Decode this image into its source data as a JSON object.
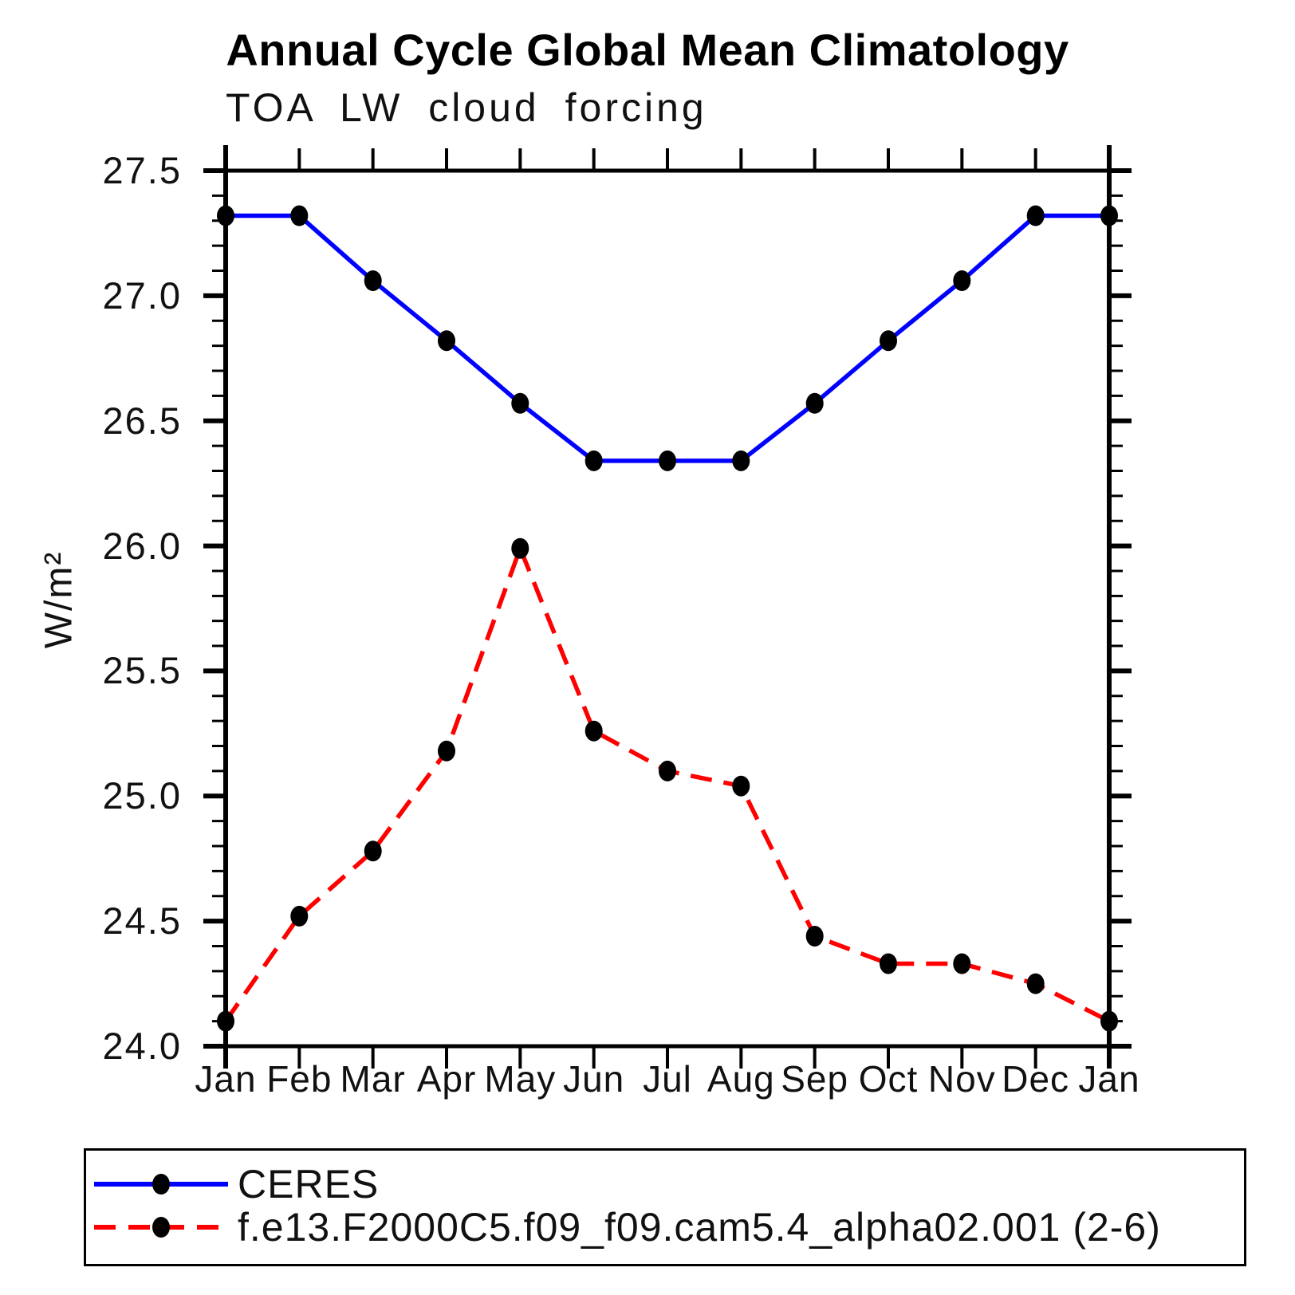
{
  "chart_data": {
    "type": "line",
    "title": "Annual Cycle Global Mean Climatology",
    "subtitle": "TOA LW cloud forcing",
    "ylabel": "W/m²",
    "xlabel": "",
    "categories": [
      "Jan",
      "Feb",
      "Mar",
      "Apr",
      "May",
      "Jun",
      "Jul",
      "Aug",
      "Sep",
      "Oct",
      "Nov",
      "Dec",
      "Jan"
    ],
    "ylim": [
      24.0,
      27.5
    ],
    "y_tick_labels": [
      "27.5",
      "27.0",
      "26.5",
      "26.0",
      "25.5",
      "25.0",
      "24.5",
      "24.0"
    ],
    "y_major_tick_step": 0.5,
    "y_minor_tick_step": 0.1,
    "grid": false,
    "legend_position": "bottom",
    "series": [
      {
        "name": "CERES",
        "color": "#0000ff",
        "line_style": "solid",
        "marker": "filled-circle",
        "marker_color": "#000000",
        "values": [
          27.32,
          27.32,
          27.06,
          26.82,
          26.57,
          26.34,
          26.34,
          26.34,
          26.57,
          26.82,
          27.06,
          27.32,
          27.32
        ]
      },
      {
        "name": "f.e13.F2000C5.f09_f09.cam5.4_alpha02.001 (2-6)",
        "color": "#ff0000",
        "line_style": "dashed",
        "marker": "filled-circle",
        "marker_color": "#000000",
        "values": [
          24.1,
          24.52,
          24.78,
          25.18,
          25.99,
          25.26,
          25.1,
          25.04,
          24.44,
          24.33,
          24.33,
          24.25,
          24.1
        ]
      }
    ]
  },
  "colors": {
    "background": "#ffffff",
    "axis": "#000000",
    "text": "#000000"
  }
}
